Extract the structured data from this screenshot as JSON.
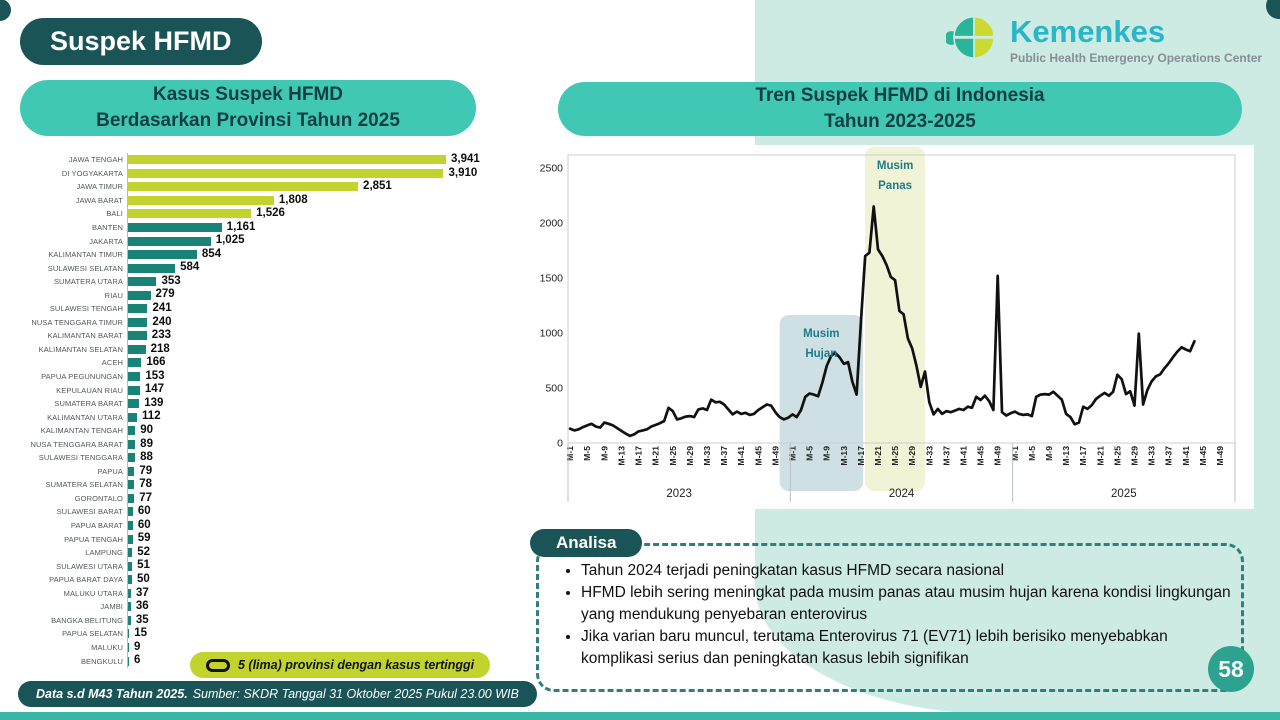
{
  "page": {
    "title": "Suspek HFMD",
    "number": "58"
  },
  "logo": {
    "brand": "Kemenkes",
    "subtitle": "Public Health Emergency Operations Center"
  },
  "bar_chart_header": {
    "line1": "Kasus Suspek HFMD",
    "line2": "Berdasarkan Provinsi Tahun 2025"
  },
  "trend_chart_header": {
    "line1": "Tren Suspek HFMD di Indonesia",
    "line2": "Tahun 2023-2025"
  },
  "legend": {
    "label": "5 (lima) provinsi dengan kasus tertinggi"
  },
  "analisa": {
    "title": "Analisa",
    "bullets": [
      "Tahun 2024 terjadi peningkatan kasus HFMD secara nasional",
      "HFMD lebih sering meningkat pada musim panas atau musim hujan karena kondisi lingkungan yang mendukung penyebaran enterovirus",
      "Jika varian baru muncul, terutama Enterovirus 71 (EV71) lebih berisiko menyebabkan komplikasi serius dan peningkatan kasus lebih signifikan"
    ]
  },
  "footer": {
    "bold": "Data s.d M43 Tahun 2025.",
    "regular": "Sumber: SKDR Tanggal 31 Oktober 2025 Pukul 23.00 WIB"
  },
  "colors": {
    "dark_teal": "#1b5456",
    "header_teal": "#41c8b4",
    "mint": "#cdebe3",
    "bar_teal": "#1a8378",
    "top5_green": "#c2d32e",
    "line": "#111111",
    "band_hujan": "#c6dade",
    "band_panas": "#eef1cf",
    "season_text": "#1d7c86",
    "page_circle": "#2ca28f",
    "bottom_bar": "#38b7a7",
    "logo_cyan": "#29b6c8"
  },
  "chart_data": [
    {
      "type": "bar",
      "orientation": "horizontal",
      "title": "Kasus Suspek HFMD Berdasarkan Provinsi Tahun 2025",
      "categories": [
        "JAWA TENGAH",
        "DI YOGYAKARTA",
        "JAWA TIMUR",
        "JAWA BARAT",
        "BALI",
        "BANTEN",
        "JAKARTA",
        "KALIMANTAN TIMUR",
        "SULAWESI SELATAN",
        "SUMATERA UTARA",
        "RIAU",
        "SULAWESI TENGAH",
        "NUSA TENGGARA TIMUR",
        "KALIMANTAN BARAT",
        "KALIMANTAN SELATAN",
        "ACEH",
        "PAPUA PEGUNUNGAN",
        "KEPULAUAN RIAU",
        "SUMATERA BARAT",
        "KALIMANTAN UTARA",
        "KALIMANTAN TENGAH",
        "NUSA TENGGARA BARAT",
        "SULAWESI TENGGARA",
        "PAPUA",
        "SUMATERA SELATAN",
        "GORONTALO",
        "SULAWESI BARAT",
        "PAPUA BARAT",
        "PAPUA TENGAH",
        "LAMPUNG",
        "SULAWESI UTARA",
        "PAPUA BARAT DAYA",
        "MALUKU UTARA",
        "JAMBI",
        "BANGKA BELITUNG",
        "PAPUA SELATAN",
        "MALUKU",
        "BENGKULU"
      ],
      "values": [
        3941,
        3910,
        2851,
        1808,
        1526,
        1161,
        1025,
        854,
        584,
        353,
        279,
        241,
        240,
        233,
        218,
        166,
        153,
        147,
        139,
        112,
        90,
        89,
        88,
        79,
        78,
        77,
        60,
        60,
        59,
        52,
        51,
        50,
        37,
        36,
        35,
        15,
        9,
        6
      ],
      "highlight_top_n": 5,
      "note": "5 (lima) provinsi dengan kasus tertinggi"
    },
    {
      "type": "line",
      "title": "Tren Suspek HFMD di Indonesia Tahun 2023-2025",
      "ylim": [
        0,
        2500
      ],
      "yticks": [
        0,
        500,
        1000,
        1500,
        2000,
        2500
      ],
      "weeks_per_year": 52,
      "xtick_labels_per_year": [
        "M-1",
        "M-5",
        "M-9",
        "M-13",
        "M-17",
        "M-21",
        "M-25",
        "M-29",
        "M-33",
        "M-37",
        "M-41",
        "M-45",
        "M-49"
      ],
      "series": [
        {
          "name": "2023",
          "values": [
            130,
            115,
            125,
            145,
            160,
            175,
            150,
            140,
            185,
            175,
            160,
            135,
            110,
            85,
            65,
            80,
            105,
            115,
            125,
            150,
            165,
            180,
            200,
            320,
            290,
            215,
            225,
            240,
            245,
            235,
            305,
            315,
            300,
            395,
            370,
            375,
            350,
            305,
            260,
            285,
            265,
            275,
            255,
            265,
            300,
            325,
            350,
            340,
            280,
            235,
            215,
            230
          ]
        },
        {
          "name": "2024",
          "values": [
            260,
            235,
            300,
            420,
            450,
            440,
            425,
            550,
            700,
            790,
            820,
            780,
            720,
            735,
            560,
            440,
            1100,
            1700,
            1730,
            2150,
            1760,
            1700,
            1620,
            1510,
            1480,
            1200,
            1170,
            950,
            860,
            700,
            510,
            650,
            370,
            260,
            310,
            265,
            290,
            280,
            295,
            310,
            300,
            330,
            320,
            420,
            390,
            430,
            380,
            300,
            1520,
            280,
            250,
            270
          ]
        },
        {
          "name": "2025",
          "values": [
            285,
            265,
            255,
            260,
            245,
            420,
            440,
            445,
            440,
            465,
            430,
            395,
            265,
            235,
            170,
            185,
            330,
            310,
            345,
            400,
            430,
            455,
            430,
            465,
            620,
            580,
            445,
            470,
            340,
            995,
            350,
            480,
            560,
            605,
            625,
            680,
            725,
            780,
            830,
            870,
            850,
            835,
            925
          ]
        }
      ],
      "bands": [
        {
          "label": "Musim Hujan",
          "start_week": 49.5,
          "end_week": 69,
          "full_height": false
        },
        {
          "label": "Musim Panas",
          "start_week": 69.5,
          "end_week": 83.5,
          "full_height": true
        }
      ],
      "legend_position": "none",
      "grid": false
    }
  ]
}
